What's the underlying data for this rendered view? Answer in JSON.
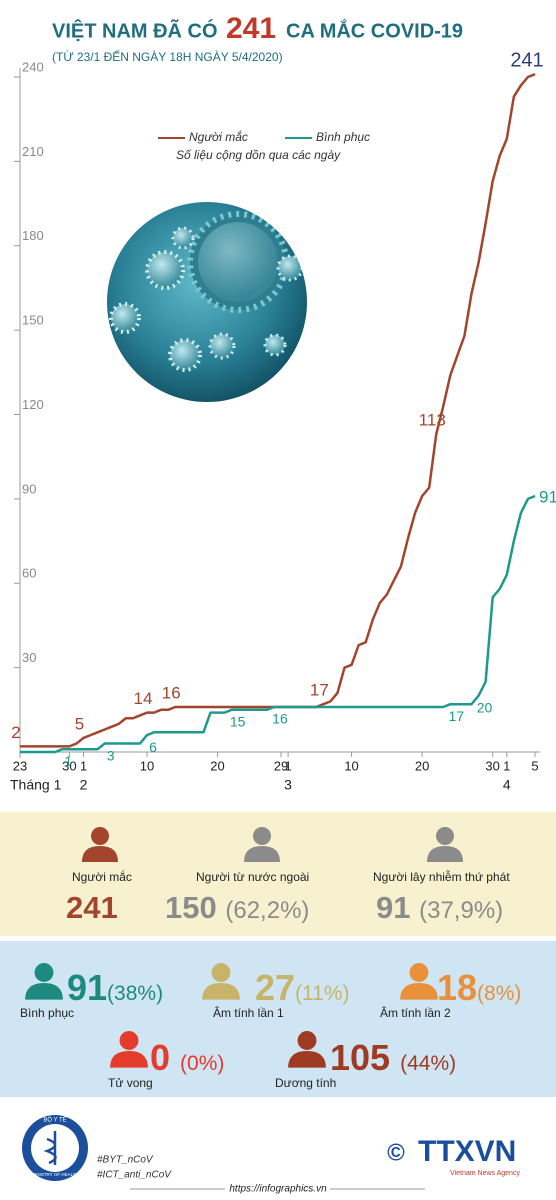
{
  "header": {
    "title_before": "VIỆT NAM ĐÃ CÓ",
    "title_number": "241",
    "title_after": "CA MẮC COVID-19",
    "subtitle": "(TỪ 23/1 ĐẾN NGÀY 18H NGÀY 5/4/2020)"
  },
  "chart_data": {
    "type": "line",
    "note": "Số liệu cộng dồn qua các ngày",
    "categories": [
      "23",
      null,
      null,
      null,
      null,
      null,
      null,
      "30",
      null,
      "1",
      null,
      null,
      null,
      null,
      null,
      null,
      null,
      null,
      "10",
      null,
      null,
      null,
      null,
      null,
      null,
      null,
      null,
      null,
      "20",
      null,
      null,
      null,
      null,
      null,
      null,
      null,
      null,
      "29",
      "1",
      null,
      null,
      null,
      null,
      null,
      null,
      null,
      null,
      "10",
      null,
      null,
      null,
      null,
      null,
      null,
      null,
      null,
      null,
      "20",
      null,
      null,
      null,
      null,
      null,
      null,
      null,
      null,
      null,
      "30",
      null,
      "1",
      null,
      null,
      null,
      "5"
    ],
    "month_labels": [
      "Tháng 1",
      null,
      null,
      null,
      null,
      null,
      null,
      null,
      null,
      "2",
      null,
      null,
      null,
      null,
      null,
      null,
      null,
      null,
      null,
      null,
      null,
      null,
      null,
      null,
      null,
      null,
      null,
      null,
      null,
      null,
      null,
      null,
      null,
      null,
      null,
      null,
      null,
      null,
      "3",
      null,
      null,
      null,
      null,
      null,
      null,
      null,
      null,
      null,
      null,
      null,
      null,
      null,
      null,
      null,
      null,
      null,
      null,
      null,
      null,
      null,
      null,
      null,
      null,
      null,
      null,
      null,
      null,
      null,
      null,
      "4",
      null,
      null,
      null,
      null
    ],
    "series": [
      {
        "name": "Người mắc",
        "color": "#a3452c",
        "values": [
          2,
          2,
          2,
          2,
          2,
          2,
          2,
          2,
          3,
          5,
          6,
          7,
          8,
          9,
          10,
          12,
          12,
          13,
          14,
          14,
          15,
          15,
          16,
          16,
          16,
          16,
          16,
          16,
          16,
          16,
          16,
          16,
          16,
          16,
          16,
          16,
          16,
          16,
          16,
          16,
          16,
          16,
          16,
          17,
          18,
          21,
          30,
          31,
          38,
          39,
          47,
          53,
          56,
          61,
          66,
          76,
          85,
          91,
          94,
          113,
          123,
          134,
          141,
          148,
          163,
          174,
          188,
          203,
          212,
          218,
          233,
          237,
          240,
          241
        ],
        "value_labels": [
          "2",
          null,
          null,
          null,
          null,
          null,
          null,
          null,
          null,
          "5",
          null,
          null,
          null,
          null,
          null,
          null,
          null,
          null,
          "14",
          null,
          null,
          null,
          "16",
          null,
          null,
          null,
          null,
          null,
          null,
          null,
          null,
          null,
          null,
          null,
          null,
          null,
          null,
          null,
          null,
          null,
          null,
          null,
          null,
          "17",
          null,
          null,
          null,
          null,
          null,
          null,
          null,
          null,
          null,
          null,
          null,
          null,
          null,
          null,
          null,
          "113",
          null,
          null,
          null,
          null,
          null,
          null,
          null,
          null,
          null,
          null,
          null,
          null,
          null,
          "241"
        ]
      },
      {
        "name": "Bình phục",
        "color": "#1c9a8e",
        "values": [
          0,
          0,
          0,
          0,
          0,
          0,
          1,
          1,
          1,
          1,
          1,
          1,
          3,
          3,
          3,
          3,
          3,
          3,
          6,
          7,
          7,
          7,
          7,
          7,
          7,
          7,
          7,
          14,
          14,
          14,
          15,
          15,
          15,
          15,
          15,
          15,
          16,
          16,
          16,
          16,
          16,
          16,
          16,
          16,
          16,
          16,
          16,
          16,
          16,
          16,
          16,
          16,
          16,
          16,
          16,
          16,
          16,
          16,
          16,
          16,
          16,
          17,
          17,
          17,
          17,
          20,
          25,
          55,
          58,
          63,
          75,
          85,
          90,
          91
        ],
        "value_labels": [
          null,
          null,
          null,
          null,
          null,
          null,
          "1",
          null,
          null,
          null,
          null,
          null,
          "3",
          null,
          null,
          null,
          null,
          null,
          "6",
          null,
          null,
          null,
          null,
          null,
          null,
          null,
          null,
          null,
          null,
          null,
          "15",
          null,
          null,
          null,
          null,
          null,
          "16",
          null,
          null,
          null,
          null,
          null,
          null,
          null,
          null,
          null,
          null,
          null,
          null,
          null,
          null,
          null,
          null,
          null,
          null,
          null,
          null,
          null,
          null,
          null,
          null,
          "17",
          null,
          null,
          null,
          "20",
          null,
          null,
          null,
          null,
          null,
          null,
          null,
          "91"
        ]
      }
    ],
    "ylim": [
      0,
      240
    ],
    "yticks": [
      30,
      60,
      90,
      120,
      150,
      180,
      210,
      240
    ]
  },
  "summary": {
    "items": [
      {
        "label": "Người mắc",
        "value": 241,
        "color": "#a3452c"
      },
      {
        "label": "Người từ nước ngoài",
        "value": 150,
        "percent": "(62,2%)",
        "color": "#8b8b8b"
      },
      {
        "label": "Người lây nhiễm thứ phát",
        "value": 91,
        "percent": "(37,9%)",
        "color": "#8b8b8b"
      }
    ]
  },
  "status": {
    "items": [
      {
        "label": "Bình phục",
        "value": 91,
        "percent": "(38%)",
        "color": "#1c8a80"
      },
      {
        "label": "Âm tính lần 1",
        "value": 27,
        "percent": "(11%)",
        "color": "#c7b46a"
      },
      {
        "label": "Âm tính lần 2",
        "value": 18,
        "percent": "(8%)",
        "color": "#e8903a"
      },
      {
        "label": "Tử vong",
        "value": 0,
        "percent": "(0%)",
        "color": "#e53b2c"
      },
      {
        "label": "Dương tính",
        "value": 105,
        "percent": "(44%)",
        "color": "#9e3b22"
      }
    ]
  },
  "footer": {
    "logo_top": "BỘ Y TẾ",
    "logo_bottom": "MINISTRY OF HEALTH",
    "hashtags": [
      "#BYT_nCoV",
      "#ICT_anti_nCoV"
    ],
    "copyright": "©",
    "agency": "TTXVN",
    "agency_sub": "Vietnam News Agency",
    "url": "https://infographics.vn"
  }
}
